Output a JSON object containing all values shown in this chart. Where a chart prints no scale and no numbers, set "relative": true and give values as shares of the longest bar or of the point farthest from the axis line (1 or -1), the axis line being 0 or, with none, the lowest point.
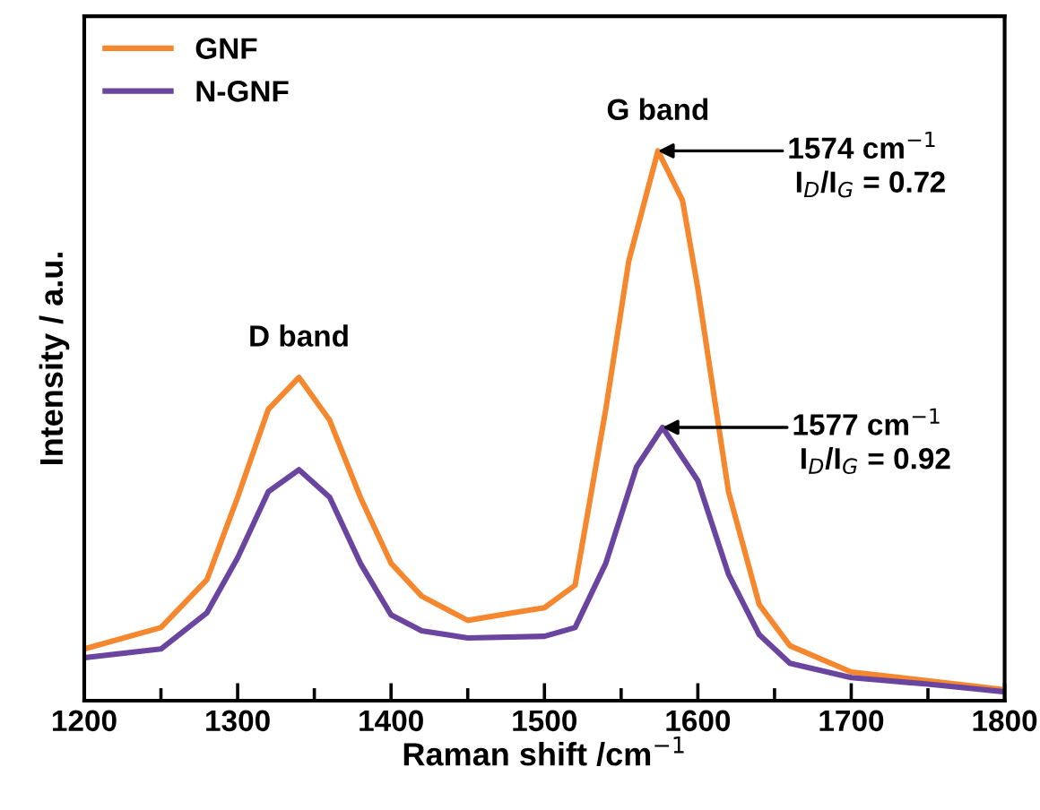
{
  "chart_data": {
    "type": "line",
    "relative": true,
    "xlabel": "Raman shift /cm$^{−1}$",
    "ylabel": "Intensity / a.u.",
    "xlim": [
      1200,
      1800
    ],
    "xticks": [
      1200,
      1300,
      1400,
      1500,
      1600,
      1700,
      1800
    ],
    "legend": "top left",
    "grid": false,
    "marker": "none",
    "line_style": "solid",
    "series": [
      {
        "name": "GNF",
        "color": "#f5882e",
        "x": [
          1200,
          1250,
          1280,
          1300,
          1320,
          1340,
          1360,
          1380,
          1400,
          1420,
          1450,
          1480,
          1500,
          1520,
          1540,
          1555,
          1574,
          1590,
          1600,
          1620,
          1640,
          1660,
          1700,
          1750,
          1800
        ],
        "values": [
          0.094,
          0.133,
          0.22,
          0.37,
          0.53,
          0.588,
          0.51,
          0.37,
          0.25,
          0.19,
          0.146,
          0.16,
          0.169,
          0.21,
          0.53,
          0.8,
          1.0,
          0.91,
          0.75,
          0.38,
          0.175,
          0.1,
          0.052,
          0.036,
          0.02
        ]
      },
      {
        "name": "N-GNF",
        "color": "#6a45a0",
        "x": [
          1200,
          1250,
          1280,
          1300,
          1320,
          1340,
          1360,
          1380,
          1400,
          1420,
          1450,
          1500,
          1520,
          1540,
          1560,
          1577,
          1600,
          1620,
          1640,
          1660,
          1700,
          1750,
          1800
        ],
        "values": [
          0.078,
          0.094,
          0.16,
          0.26,
          0.38,
          0.42,
          0.37,
          0.25,
          0.156,
          0.127,
          0.114,
          0.117,
          0.133,
          0.25,
          0.425,
          0.497,
          0.4,
          0.23,
          0.12,
          0.068,
          0.042,
          0.03,
          0.016
        ]
      }
    ],
    "annotations": [
      {
        "text": "D band",
        "x": 1340,
        "y": 0.588
      },
      {
        "text": "G band",
        "x": 1574,
        "y": 1.0
      },
      {
        "text": "1574 cm$^{−1}$",
        "x": 1574,
        "y": 1.0
      },
      "I$_{D}$/I$_{G}$ = 0.72",
      {
        "text": "1577 cm$^{−1}$",
        "x": 1577,
        "y": 0.497
      },
      "I$_{D}$/I$_{G}$ = 0.92"
    ]
  }
}
